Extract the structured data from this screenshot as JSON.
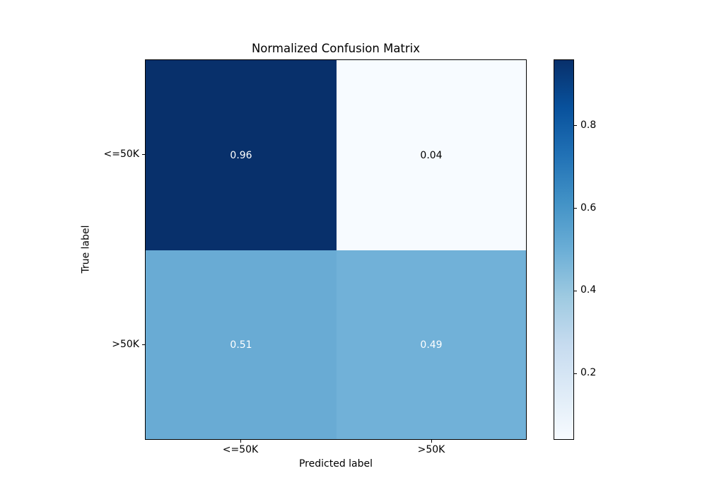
{
  "chart_data": {
    "type": "heatmap",
    "title": "Normalized Confusion Matrix",
    "xlabel": "Predicted label",
    "ylabel": "True label",
    "x_tick_labels": [
      "<=50K",
      ">50K"
    ],
    "y_tick_labels": [
      "<=50K",
      ">50K"
    ],
    "matrix": [
      [
        0.96,
        0.04
      ],
      [
        0.51,
        0.49
      ]
    ],
    "cell_labels": [
      [
        "0.96",
        "0.04"
      ],
      [
        "0.51",
        "0.49"
      ]
    ],
    "cell_colors": [
      [
        "#08306b",
        "#f7fbff"
      ],
      [
        "#69abd4",
        "#71b1d8"
      ]
    ],
    "cell_text_colors": [
      [
        "#ffffff",
        "#000000"
      ],
      [
        "#ffffff",
        "#ffffff"
      ]
    ],
    "colormap": "Blues",
    "grid": false,
    "colorbar": {
      "position": "right",
      "vmin": 0.04,
      "vmax": 0.96,
      "tick_values": [
        0.2,
        0.4,
        0.6,
        0.8
      ],
      "tick_labels": [
        "0.2",
        "0.4",
        "0.6",
        "0.8"
      ],
      "gradient_stops_bottom_to_top": [
        "#f7fbff",
        "#deebf7",
        "#c6dbef",
        "#9ecae1",
        "#6baed6",
        "#4292c6",
        "#2171b5",
        "#08519c",
        "#08306b"
      ]
    }
  }
}
